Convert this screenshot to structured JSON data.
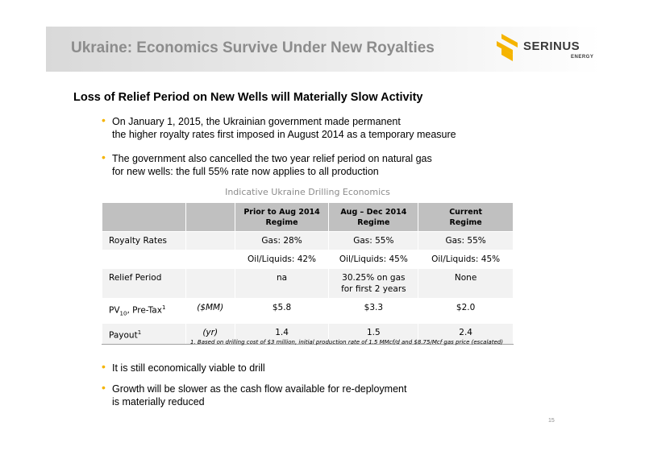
{
  "slide": {
    "title": "Ukraine:  Economics Survive Under New Royalties",
    "logo": {
      "word": "SERINUS",
      "sub": "ENERGY"
    },
    "subheading": "Loss of Relief Period on New Wells will Materially Slow Activity",
    "bullets_top": [
      {
        "lines": [
          "On January 1, 2015, the Ukrainian government made permanent",
          "the higher royalty rates first imposed in August 2014 as a temporary measure"
        ]
      },
      {
        "lines": [
          "The government also cancelled the two year relief period on natural gas",
          "for new wells: the full 55% rate now applies to all production"
        ]
      }
    ],
    "table": {
      "caption": "Indicative Ukraine Drilling Economics",
      "headers": [
        {
          "line1": "",
          "line2": ""
        },
        {
          "line1": "",
          "line2": ""
        },
        {
          "line1": "Prior to Aug 2014",
          "line2": "Regime"
        },
        {
          "line1": "Aug – Dec 2014",
          "line2": "Regime"
        },
        {
          "line1": "Current",
          "line2": "Regime"
        }
      ],
      "rows": [
        {
          "label": "Royalty Rates",
          "unit": "",
          "c1": "Gas: 28%",
          "c2": "Gas: 55%",
          "c3": "Gas: 55%"
        },
        {
          "label": "",
          "unit": "",
          "c1": "Oil/Liquids:  42%",
          "c2": "Oil/Liquids:  45%",
          "c3": "Oil/Liquids:  45%"
        },
        {
          "label": "Relief Period",
          "unit": "",
          "c1": "na",
          "c2": "30.25% on gas for first 2 years",
          "c3": "None"
        },
        {
          "label_pre": "PV",
          "label_sub": "10",
          "label_post": ", Pre-Tax",
          "label_sup": "1",
          "unit": "($MM)",
          "c1": "$5.8",
          "c2": "$3.3",
          "c3": "$2.0"
        },
        {
          "label_pre": "Payout",
          "label_sup": "1",
          "unit": "(yr)",
          "c1": "1.4",
          "c2": "1.5",
          "c3": "2.4"
        }
      ],
      "footnote": "1.    Based on drilling cost of $3 million, initial production rate of 1.5 MMcf/d and $8.75/Mcf gas price (escalated)"
    },
    "bullets_bottom": [
      {
        "lines": [
          "It is still economically viable to drill"
        ]
      },
      {
        "lines": [
          "Growth will be slower as the cash flow available for re-deployment",
          "is materially reduced"
        ]
      }
    ],
    "page_number": "15",
    "colors": {
      "accent": "#f5b400",
      "title": "#8c8c8c",
      "header_fill": "#c0c0c0",
      "row_fill": "#f2f2f2"
    }
  }
}
